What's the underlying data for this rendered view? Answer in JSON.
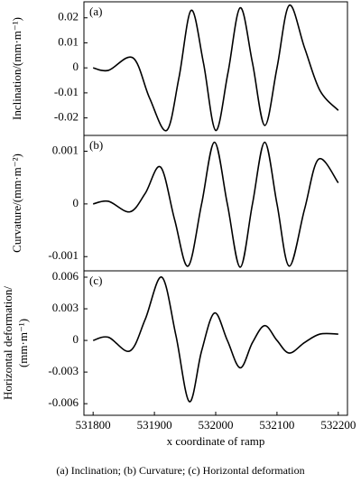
{
  "chart_data": [
    {
      "type": "line",
      "panel_label": "(a)",
      "ylabel": "Inclination/(mm·m⁻¹)",
      "x": [
        531800,
        531825,
        531865,
        531892,
        531920,
        531940,
        531960,
        531980,
        532000,
        532020,
        532040,
        532060,
        532080,
        532100,
        532120,
        532145,
        532170,
        532200
      ],
      "series": [
        {
          "color": "#000000",
          "values": [
            0,
            -0.001,
            0.004,
            -0.012,
            -0.025,
            -0.004,
            0.023,
            0.002,
            -0.025,
            -0.002,
            0.024,
            0.002,
            -0.023,
            0,
            0.025,
            0.008,
            -0.009,
            -0.017
          ]
        }
      ],
      "xlim": [
        531785,
        532215
      ],
      "ylim": [
        -0.027,
        0.0264
      ],
      "yticks": [
        0.02,
        0.01,
        0,
        -0.01,
        -0.02
      ]
    },
    {
      "type": "line",
      "panel_label": "(b)",
      "ylabel": "Curvature/(mm·m⁻²)",
      "x": [
        531800,
        531825,
        531860,
        531885,
        531910,
        531933,
        531955,
        531977,
        531998,
        532019,
        532040,
        532060,
        532080,
        532100,
        532120,
        532145,
        532168,
        532200
      ],
      "series": [
        {
          "color": "#000000",
          "values": [
            0,
            5e-05,
            -0.00015,
            0.0002,
            0.0007,
            -0.0003,
            -0.00118,
            0,
            0.00117,
            0,
            -0.0012,
            0,
            0.00117,
            0,
            -0.00118,
            -0.0001,
            0.00085,
            0.0004
          ]
        }
      ],
      "xlim": [
        531785,
        532215
      ],
      "ylim": [
        -0.00127,
        0.0013
      ],
      "yticks": [
        0.001,
        0,
        -0.001
      ]
    },
    {
      "type": "line",
      "panel_label": "(c)",
      "ylabel": [
        "Horizontal deformation/",
        "(mm·m⁻¹)"
      ],
      "x": [
        531800,
        531825,
        531860,
        531885,
        531912,
        531935,
        531957,
        531977,
        531998,
        532019,
        532040,
        532060,
        532080,
        532100,
        532120,
        532145,
        532170,
        532200
      ],
      "series": [
        {
          "color": "#000000",
          "values": [
            0,
            0.0003,
            -0.001,
            0.002,
            0.006,
            0.0005,
            -0.0058,
            -0.001,
            0.0026,
            0,
            -0.0026,
            -0.0002,
            0.0014,
            0,
            -0.0012,
            -0.0002,
            0.0006,
            0.0006
          ]
        }
      ],
      "xlim": [
        531785,
        532215
      ],
      "ylim": [
        -0.0071,
        0.0066
      ],
      "yticks": [
        0.006,
        0.003,
        0,
        -0.003,
        -0.006
      ],
      "xticks": [
        531800,
        531900,
        532000,
        532100,
        532200
      ],
      "xlabel": "x coordinate of ramp"
    }
  ],
  "caption": "(a) Inclination; (b) Curvature; (c) Horizontal deformation"
}
